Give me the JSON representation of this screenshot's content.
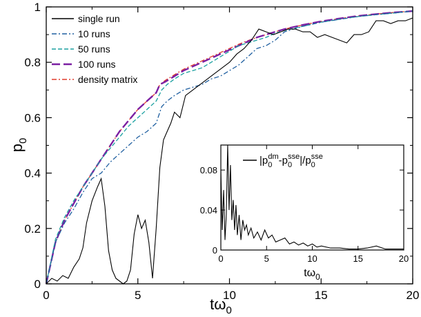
{
  "chart_data": [
    {
      "type": "line",
      "xlabel": "tω",
      "xlabel_sub": "0",
      "ylabel": "p",
      "ylabel_sub": "0",
      "xlim": [
        0,
        20
      ],
      "ylim": [
        0,
        1
      ],
      "xticks": [
        0,
        5,
        10,
        15,
        20
      ],
      "yticks": [
        0,
        0.2,
        0.4,
        0.6,
        0.8,
        1
      ],
      "ytick_labels": [
        "0",
        "0.2",
        "0.4",
        "0.6",
        "0.8",
        "1"
      ],
      "grid": false,
      "legend_position": "top-left",
      "series": [
        {
          "name": "single run",
          "color": "#000000",
          "dash": "solid",
          "x": [
            0,
            0.3,
            0.6,
            0.9,
            1.2,
            1.5,
            1.8,
            2.0,
            2.2,
            2.5,
            2.8,
            3.0,
            3.2,
            3.4,
            3.6,
            3.8,
            4.0,
            4.2,
            4.4,
            4.6,
            4.8,
            5.0,
            5.2,
            5.4,
            5.6,
            5.8,
            6.0,
            6.2,
            6.4,
            6.6,
            6.8,
            7.0,
            7.3,
            7.6,
            8.0,
            8.4,
            8.8,
            9.2,
            9.6,
            10.0,
            10.4,
            10.8,
            11.2,
            11.6,
            12.0,
            12.4,
            12.8,
            13.2,
            13.6,
            14.0,
            14.4,
            14.8,
            15.2,
            15.6,
            16.0,
            16.4,
            16.8,
            17.2,
            17.6,
            18.0,
            18.4,
            18.8,
            19.2,
            19.6,
            20.0
          ],
          "y": [
            0,
            0.02,
            0.01,
            0.03,
            0.02,
            0.06,
            0.09,
            0.13,
            0.22,
            0.3,
            0.35,
            0.38,
            0.28,
            0.12,
            0.05,
            0.02,
            0.01,
            0.0,
            0.01,
            0.05,
            0.18,
            0.25,
            0.2,
            0.23,
            0.15,
            0.02,
            0.2,
            0.42,
            0.52,
            0.55,
            0.58,
            0.62,
            0.6,
            0.68,
            0.7,
            0.72,
            0.74,
            0.76,
            0.78,
            0.8,
            0.83,
            0.85,
            0.88,
            0.92,
            0.91,
            0.9,
            0.91,
            0.92,
            0.92,
            0.91,
            0.91,
            0.89,
            0.9,
            0.89,
            0.88,
            0.87,
            0.9,
            0.9,
            0.91,
            0.95,
            0.95,
            0.94,
            0.95,
            0.95,
            0.96
          ]
        },
        {
          "name": "10 runs",
          "color": "#1f5fa0",
          "dash": "dashdot",
          "x": [
            0,
            0.5,
            1.0,
            1.5,
            2.0,
            2.5,
            3.0,
            3.5,
            4.0,
            4.5,
            5.0,
            5.5,
            6.0,
            6.3,
            6.6,
            7.0,
            7.5,
            8.0,
            8.5,
            9.0,
            9.5,
            10.0,
            10.5,
            11.0,
            11.5,
            12.0,
            12.5,
            13.0,
            14.0,
            15.0,
            16.0,
            17.0,
            18.0,
            19.0,
            20.0
          ],
          "y": [
            0,
            0.15,
            0.22,
            0.27,
            0.33,
            0.38,
            0.4,
            0.44,
            0.47,
            0.5,
            0.53,
            0.55,
            0.58,
            0.64,
            0.66,
            0.68,
            0.7,
            0.71,
            0.72,
            0.74,
            0.75,
            0.77,
            0.79,
            0.82,
            0.85,
            0.86,
            0.88,
            0.91,
            0.93,
            0.945,
            0.955,
            0.965,
            0.972,
            0.978,
            0.985
          ]
        },
        {
          "name": "50 runs",
          "color": "#1aa0a0",
          "dash": "dashed",
          "x": [
            0,
            0.5,
            1.0,
            1.5,
            2.0,
            2.5,
            3.0,
            3.5,
            4.0,
            4.5,
            5.0,
            5.5,
            6.0,
            6.3,
            6.6,
            7.0,
            7.5,
            8.0,
            8.5,
            9.0,
            9.5,
            10.0,
            10.5,
            11.0,
            11.5,
            12.0,
            12.5,
            13.0,
            14.0,
            15.0,
            16.0,
            17.0,
            18.0,
            19.0,
            20.0
          ],
          "y": [
            0,
            0.16,
            0.24,
            0.3,
            0.35,
            0.4,
            0.45,
            0.49,
            0.53,
            0.57,
            0.6,
            0.63,
            0.66,
            0.7,
            0.72,
            0.74,
            0.76,
            0.77,
            0.78,
            0.8,
            0.82,
            0.84,
            0.86,
            0.87,
            0.88,
            0.89,
            0.905,
            0.915,
            0.93,
            0.945,
            0.955,
            0.965,
            0.972,
            0.978,
            0.985
          ]
        },
        {
          "name": "100 runs",
          "color": "#7b1fa2",
          "dash": "longdash",
          "x": [
            0,
            0.5,
            1.0,
            1.5,
            2.0,
            2.5,
            3.0,
            3.5,
            4.0,
            4.5,
            5.0,
            5.5,
            6.0,
            6.2,
            6.5,
            7.0,
            7.5,
            8.0,
            8.5,
            9.0,
            9.5,
            10.0,
            10.5,
            11.0,
            11.5,
            12.0,
            12.5,
            13.0,
            14.0,
            15.0,
            16.0,
            17.0,
            18.0,
            19.0,
            20.0
          ],
          "y": [
            0,
            0.15,
            0.23,
            0.29,
            0.35,
            0.4,
            0.45,
            0.5,
            0.55,
            0.59,
            0.63,
            0.66,
            0.69,
            0.72,
            0.73,
            0.75,
            0.77,
            0.785,
            0.8,
            0.815,
            0.83,
            0.845,
            0.86,
            0.875,
            0.89,
            0.9,
            0.91,
            0.92,
            0.935,
            0.948,
            0.958,
            0.967,
            0.974,
            0.98,
            0.985
          ]
        },
        {
          "name": "density matrix",
          "color": "#e03a2a",
          "dash": "dashdot",
          "x": [
            0,
            0.5,
            1.0,
            1.5,
            2.0,
            2.5,
            3.0,
            3.5,
            4.0,
            4.5,
            5.0,
            5.5,
            6.0,
            6.2,
            6.5,
            7.0,
            7.5,
            8.0,
            8.5,
            9.0,
            9.5,
            10.0,
            10.5,
            11.0,
            11.5,
            12.0,
            12.5,
            13.0,
            14.0,
            15.0,
            16.0,
            17.0,
            18.0,
            19.0,
            20.0
          ],
          "y": [
            0,
            0.15,
            0.23,
            0.29,
            0.35,
            0.4,
            0.45,
            0.5,
            0.55,
            0.59,
            0.63,
            0.66,
            0.69,
            0.72,
            0.735,
            0.755,
            0.775,
            0.79,
            0.805,
            0.82,
            0.835,
            0.85,
            0.865,
            0.878,
            0.89,
            0.9,
            0.91,
            0.92,
            0.935,
            0.948,
            0.958,
            0.967,
            0.974,
            0.98,
            0.985
          ]
        }
      ]
    },
    {
      "type": "line",
      "inset": true,
      "xlabel": "tω",
      "xlabel_sub": "0",
      "ylabel": "",
      "xlim": [
        0,
        20
      ],
      "ylim": [
        0,
        0.105
      ],
      "xticks": [
        0,
        5,
        10,
        15,
        20
      ],
      "yticks": [
        0,
        0.04,
        0.08
      ],
      "ytick_labels": [
        "0",
        "0.04",
        "0.08"
      ],
      "legend_position": "top-right",
      "series": [
        {
          "name": "|p0dm - p0sse|/p0sse",
          "legend_parts": {
            "bar_left": "|p",
            "sub1": "0",
            "sup1": "dm",
            "minus": "-p",
            "sub2": "0",
            "sup2": "sse",
            "bar_div": "|/p",
            "sub3": "0",
            "sup3": "sse"
          },
          "color": "#000000",
          "x": [
            0,
            0.15,
            0.3,
            0.45,
            0.6,
            0.75,
            0.9,
            1.05,
            1.2,
            1.35,
            1.5,
            1.65,
            1.8,
            2.0,
            2.2,
            2.4,
            2.6,
            2.8,
            3.0,
            3.3,
            3.6,
            4.0,
            4.4,
            4.8,
            5.2,
            5.6,
            6.0,
            6.5,
            7.0,
            7.5,
            8.0,
            8.5,
            9.0,
            9.5,
            10.0,
            10.5,
            11.0,
            12.0,
            13.0,
            14.0,
            15.0,
            16.0,
            17.0,
            18.0,
            19.0,
            20.0
          ],
          "y": [
            0.08,
            0.02,
            0.06,
            0.01,
            0.035,
            0.105,
            0.04,
            0.085,
            0.03,
            0.05,
            0.02,
            0.045,
            0.015,
            0.035,
            0.01,
            0.03,
            0.02,
            0.025,
            0.015,
            0.022,
            0.012,
            0.018,
            0.01,
            0.02,
            0.012,
            0.015,
            0.008,
            0.01,
            0.012,
            0.006,
            0.008,
            0.005,
            0.007,
            0.004,
            0.006,
            0.003,
            0.004,
            0.002,
            0.002,
            0.001,
            0.001,
            0.002,
            0.004,
            0.001,
            0.001,
            0.001
          ]
        }
      ]
    }
  ]
}
